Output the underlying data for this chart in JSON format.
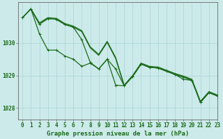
{
  "title": "Graphe pression niveau de la mer (hPa)",
  "background_color": "#cceaea",
  "grid_color": "#aad4d4",
  "line_color": "#1a6b1a",
  "xlim": [
    -0.5,
    23
  ],
  "ylim": [
    1027.65,
    1031.25
  ],
  "yticks": [
    1028,
    1029,
    1030
  ],
  "xticks": [
    0,
    1,
    2,
    3,
    4,
    5,
    6,
    7,
    8,
    9,
    10,
    11,
    12,
    13,
    14,
    15,
    16,
    17,
    18,
    19,
    20,
    21,
    22,
    23
  ],
  "line1": [
    1030.78,
    1031.05,
    1030.62,
    1030.78,
    1030.76,
    1030.6,
    1030.52,
    1030.38,
    1029.88,
    1029.65,
    1030.05,
    1029.55,
    1028.7,
    1029.0,
    1029.38,
    1029.28,
    1029.26,
    1029.16,
    1029.06,
    1028.98,
    1028.88,
    1028.2,
    1028.5,
    1028.4
  ],
  "line2": [
    1030.78,
    1031.05,
    1030.58,
    1030.75,
    1030.73,
    1030.57,
    1030.49,
    1030.35,
    1029.85,
    1029.62,
    1030.02,
    1029.52,
    1028.68,
    1028.97,
    1029.35,
    1029.25,
    1029.23,
    1029.13,
    1029.03,
    1028.95,
    1028.85,
    1028.17,
    1028.47,
    1028.37
  ],
  "line3_marked": [
    1030.78,
    1031.05,
    1030.28,
    1029.78,
    1029.78,
    1029.6,
    1029.5,
    1029.28,
    1029.38,
    1029.2,
    1029.5,
    1028.7,
    1028.68,
    1028.97,
    1029.35,
    1029.25,
    1029.23,
    1029.13,
    1029.03,
    1028.95,
    1028.85,
    1028.17,
    1028.47,
    1028.37
  ],
  "line4_marked": [
    1030.78,
    1031.05,
    1030.58,
    1030.75,
    1030.73,
    1030.57,
    1030.49,
    1030.1,
    1029.4,
    1029.2,
    1029.5,
    1029.2,
    1028.68,
    1028.97,
    1029.35,
    1029.25,
    1029.23,
    1029.13,
    1029.03,
    1028.88,
    1028.85,
    1028.17,
    1028.47,
    1028.37
  ],
  "linewidth": 0.9,
  "marker_size": 2.5,
  "tick_fontsize": 5.5,
  "title_fontsize": 6.5
}
